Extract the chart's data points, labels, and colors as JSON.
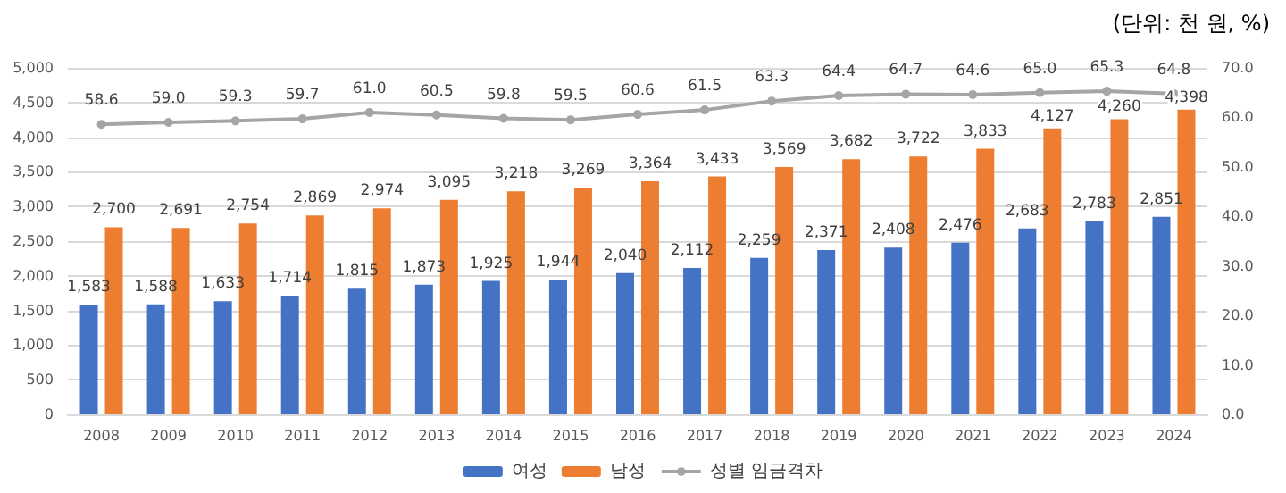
{
  "chart_data": {
    "type": "bar",
    "subtitle": "(단위: 천 원, %)",
    "categories": [
      "2008",
      "2009",
      "2010",
      "2011",
      "2012",
      "2013",
      "2014",
      "2015",
      "2016",
      "2017",
      "2018",
      "2019",
      "2020",
      "2021",
      "2022",
      "2023",
      "2024"
    ],
    "series": [
      {
        "name": "여성",
        "color": "#4472c4",
        "values": [
          1583,
          1588,
          1633,
          1714,
          1815,
          1873,
          1925,
          1944,
          2040,
          2112,
          2259,
          2371,
          2408,
          2476,
          2683,
          2783,
          2851
        ],
        "value_labels": [
          "1,583",
          "1,588",
          "1,633",
          "1,714",
          "1,815",
          "1,873",
          "1,925",
          "1,944",
          "2,040",
          "2,112",
          "2,259",
          "2,371",
          "2,408",
          "2,476",
          "2,683",
          "2,783",
          "2,851"
        ]
      },
      {
        "name": "남성",
        "color": "#ed7d31",
        "values": [
          2700,
          2691,
          2754,
          2869,
          2974,
          3095,
          3218,
          3269,
          3364,
          3433,
          3569,
          3682,
          3722,
          3833,
          4127,
          4260,
          4398
        ],
        "value_labels": [
          "2,700",
          "2,691",
          "2,754",
          "2,869",
          "2,974",
          "3,095",
          "3,218",
          "3,269",
          "3,364",
          "3,433",
          "3,569",
          "3,682",
          "3,722",
          "3,833",
          "4,127",
          "4,260",
          "4,398"
        ]
      },
      {
        "name": "성별 임금격차",
        "type": "line",
        "axis": "y2",
        "color": "#a5a5a5",
        "values": [
          58.6,
          59.0,
          59.3,
          59.7,
          61.0,
          60.5,
          59.8,
          59.5,
          60.6,
          61.5,
          63.3,
          64.4,
          64.7,
          64.6,
          65.0,
          65.3,
          64.8
        ],
        "value_labels": [
          "58.6",
          "59.0",
          "59.3",
          "59.7",
          "61.0",
          "60.5",
          "59.8",
          "59.5",
          "60.6",
          "61.5",
          "63.3",
          "64.4",
          "64.7",
          "64.6",
          "65.0",
          "65.3",
          "64.8"
        ]
      }
    ],
    "ylim": [
      0,
      5000
    ],
    "yticks": [
      0,
      500,
      {
        "value": 1000,
        "label": "1,000"
      },
      {
        "value": 1500,
        "label": "1,500"
      },
      {
        "value": 2000,
        "label": "2,000"
      },
      {
        "value": 2500,
        "label": "2,500"
      },
      {
        "value": 3000,
        "label": "3,000"
      },
      {
        "value": 3500,
        "label": "3,500"
      },
      {
        "value": 4000,
        "label": "4,000"
      },
      {
        "value": 4500,
        "label": "4,500"
      },
      {
        "value": 5000,
        "label": "5,000"
      }
    ],
    "y2lim": [
      0,
      70
    ],
    "y2ticks": [
      {
        "value": 0,
        "label": "0.0"
      },
      {
        "value": 10,
        "label": "10.0"
      },
      {
        "value": 20,
        "label": "20.0"
      },
      {
        "value": 30,
        "label": "30.0"
      },
      {
        "value": 40,
        "label": "40.0"
      },
      {
        "value": 50,
        "label": "50.0"
      },
      {
        "value": 60,
        "label": "60.0"
      },
      {
        "value": 70,
        "label": "70.0"
      }
    ],
    "grid": "y",
    "legend": "bottom",
    "marker": "circle"
  }
}
